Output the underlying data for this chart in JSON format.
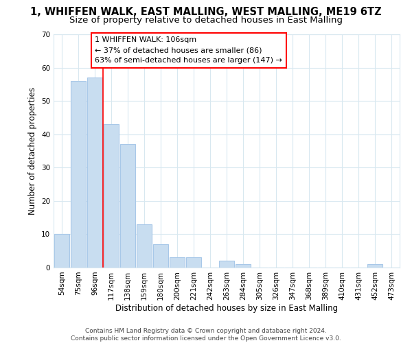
{
  "title": "1, WHIFFEN WALK, EAST MALLING, WEST MALLING, ME19 6TZ",
  "subtitle": "Size of property relative to detached houses in East Malling",
  "xlabel": "Distribution of detached houses by size in East Malling",
  "ylabel": "Number of detached properties",
  "bar_color": "#c8ddf0",
  "bar_edge_color": "#a8c8e8",
  "categories": [
    "54sqm",
    "75sqm",
    "96sqm",
    "117sqm",
    "138sqm",
    "159sqm",
    "180sqm",
    "200sqm",
    "221sqm",
    "242sqm",
    "263sqm",
    "284sqm",
    "305sqm",
    "326sqm",
    "347sqm",
    "368sqm",
    "389sqm",
    "410sqm",
    "431sqm",
    "452sqm",
    "473sqm"
  ],
  "values": [
    10,
    56,
    57,
    43,
    37,
    13,
    7,
    3,
    3,
    0,
    2,
    1,
    0,
    0,
    0,
    0,
    0,
    0,
    0,
    1,
    0
  ],
  "ylim": [
    0,
    70
  ],
  "yticks": [
    0,
    10,
    20,
    30,
    40,
    50,
    60,
    70
  ],
  "red_line_x": 2.5,
  "annotation_box_text_line1": "1 WHIFFEN WALK: 106sqm",
  "annotation_box_text_line2": "← 37% of detached houses are smaller (86)",
  "annotation_box_text_line3": "63% of semi-detached houses are larger (147) →",
  "footnote": "Contains HM Land Registry data © Crown copyright and database right 2024.\nContains public sector information licensed under the Open Government Licence v3.0.",
  "background_color": "#ffffff",
  "grid_color": "#d8e8f0",
  "title_fontsize": 10.5,
  "subtitle_fontsize": 9.5,
  "axis_label_fontsize": 8.5,
  "tick_fontsize": 7.5,
  "annotation_fontsize": 8,
  "footnote_fontsize": 6.5
}
